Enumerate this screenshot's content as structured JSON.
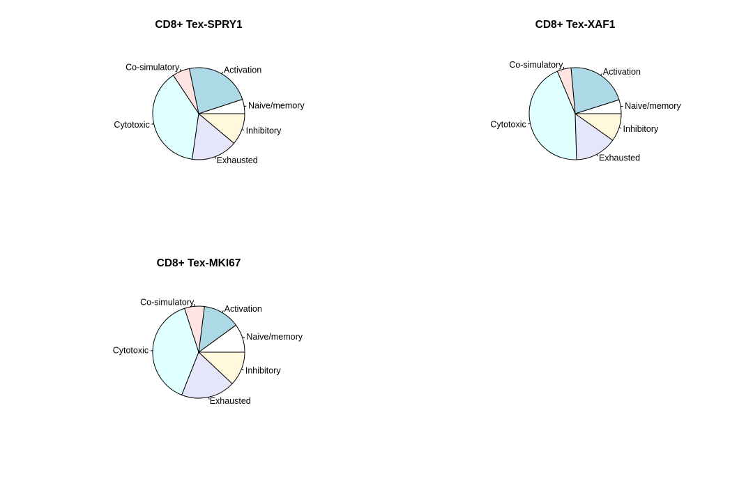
{
  "chart_data": [
    {
      "type": "pie",
      "title": "CD8+ Tex-SPRY1",
      "categories": [
        "Naive/memory",
        "Activation",
        "Co-simulatory",
        "Cytotoxic",
        "Exhausted",
        "Inhibitory"
      ],
      "values": [
        5,
        23,
        6,
        38,
        16,
        11
      ],
      "colors": [
        "#FFFFFF",
        "#ADD8E6",
        "#FFE4E1",
        "#E0FFFF",
        "#E6E6FA",
        "#FFF8DC"
      ]
    },
    {
      "type": "pie",
      "title": "CD8+ Tex-XAF1",
      "categories": [
        "Naive/memory",
        "Activation",
        "Co-simulatory",
        "Cytotoxic",
        "Exhausted",
        "Inhibitory"
      ],
      "values": [
        5,
        22,
        5,
        45,
        15,
        10
      ],
      "colors": [
        "#FFFFFF",
        "#ADD8E6",
        "#FFE4E1",
        "#E0FFFF",
        "#E6E6FA",
        "#FFF8DC"
      ]
    },
    {
      "type": "pie",
      "title": "CD8+ Tex-MKI67",
      "categories": [
        "Naive/memory",
        "Activation",
        "Co-simulatory",
        "Cytotoxic",
        "Exhausted",
        "Inhibitory"
      ],
      "values": [
        10,
        13,
        7,
        39,
        19,
        12
      ],
      "colors": [
        "#FFFFFF",
        "#ADD8E6",
        "#FFE4E1",
        "#E0FFFF",
        "#E6E6FA",
        "#FFF8DC"
      ]
    }
  ]
}
